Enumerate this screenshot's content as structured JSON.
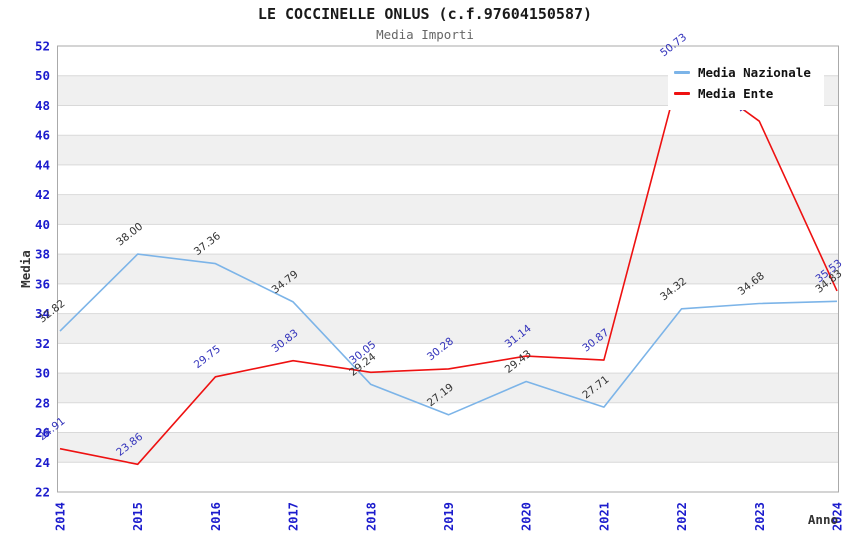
{
  "header": {
    "title": "LE COCCINELLE ONLUS (c.f.97604150587)",
    "subtitle": "Media Importi"
  },
  "chart_data": {
    "type": "line",
    "x": [
      2014,
      2015,
      2016,
      2017,
      2018,
      2019,
      2020,
      2021,
      2022,
      2023,
      2024
    ],
    "series": [
      {
        "name": "Media Nazionale",
        "color": "#7cb4e8",
        "label_color": "#333333",
        "values": [
          32.82,
          38.0,
          37.36,
          34.79,
          29.24,
          27.19,
          29.43,
          27.71,
          34.32,
          34.68,
          34.83
        ]
      },
      {
        "name": "Media Ente",
        "color": "#ee1111",
        "label_color": "#3333bb",
        "values": [
          24.91,
          23.86,
          29.75,
          30.83,
          30.05,
          30.28,
          31.14,
          30.87,
          50.73,
          46.94,
          35.53
        ]
      }
    ],
    "xlabel": "Anno",
    "ylabel": "Media",
    "ylim": [
      22,
      52
    ],
    "ytick_step": 2,
    "grid": true,
    "banded_background": true,
    "legend_position": "top-right",
    "data_label_decimals": 2
  },
  "colors": {
    "tick_label": "#1c1ccd",
    "grid_line": "#d9d9d9",
    "plot_border": "#aaaaaa",
    "band_fill": "#f0f0f0",
    "axis_title": "#333333"
  }
}
